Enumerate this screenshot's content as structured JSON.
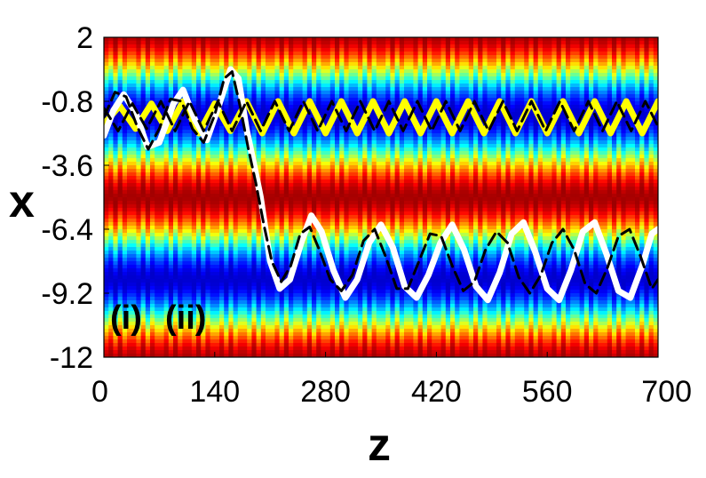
{
  "chart_data": {
    "type": "heatmap",
    "title": "",
    "xlabel": "z",
    "ylabel": "x",
    "xlim": [
      0,
      700
    ],
    "ylim": [
      -12,
      2
    ],
    "xticks": [
      "0",
      "140",
      "280",
      "420",
      "560",
      "700"
    ],
    "xtick_values": [
      0,
      140,
      280,
      420,
      560,
      700
    ],
    "yticks": [
      "2",
      "-0.8",
      "-3.6",
      "-6.4",
      "-9.2",
      "-12"
    ],
    "ytick_values": [
      2,
      -0.8,
      -3.6,
      -6.4,
      -9.2,
      -12
    ],
    "colormap": "jet",
    "background_field": {
      "description_of_pattern": "periodic lattice in x, modulated in z",
      "x_period": 7.2,
      "x_phase_center_low": -1.4,
      "z_period": 14,
      "band_low_values_centers": [
        -1.4,
        -7.7
      ],
      "band_high_values_centers": [
        -4.4,
        -10.8,
        1.5
      ]
    },
    "series": [
      {
        "label_key": "i",
        "color": "#ffff00",
        "style": "solid",
        "points": [
          [
            0,
            -1.8
          ],
          [
            20,
            -1.0
          ],
          [
            40,
            -2.0
          ],
          [
            60,
            -0.9
          ],
          [
            80,
            -2.1
          ],
          [
            100,
            -0.8
          ],
          [
            120,
            -2.2
          ],
          [
            140,
            -0.9
          ],
          [
            160,
            -2.1
          ],
          [
            180,
            -0.8
          ],
          [
            200,
            -2.2
          ],
          [
            220,
            -0.8
          ],
          [
            240,
            -2.2
          ],
          [
            260,
            -0.8
          ],
          [
            280,
            -2.2
          ],
          [
            300,
            -0.8
          ],
          [
            320,
            -2.2
          ],
          [
            340,
            -0.8
          ],
          [
            360,
            -2.2
          ],
          [
            380,
            -0.8
          ],
          [
            400,
            -2.2
          ],
          [
            420,
            -0.8
          ],
          [
            440,
            -2.2
          ],
          [
            460,
            -0.8
          ],
          [
            480,
            -2.2
          ],
          [
            500,
            -0.8
          ],
          [
            520,
            -2.2
          ],
          [
            540,
            -0.8
          ],
          [
            560,
            -2.2
          ],
          [
            580,
            -0.8
          ],
          [
            600,
            -2.2
          ],
          [
            620,
            -0.8
          ],
          [
            640,
            -2.2
          ],
          [
            660,
            -0.8
          ],
          [
            680,
            -2.2
          ],
          [
            700,
            -0.8
          ]
        ]
      },
      {
        "label_key": "ii",
        "color": "#ffffff",
        "style": "solid",
        "points": [
          [
            0,
            -2.3
          ],
          [
            12,
            -1.2
          ],
          [
            25,
            -0.5
          ],
          [
            40,
            -1.3
          ],
          [
            55,
            -2.8
          ],
          [
            70,
            -2.6
          ],
          [
            88,
            -0.9
          ],
          [
            100,
            -0.3
          ],
          [
            115,
            -1.6
          ],
          [
            130,
            -2.5
          ],
          [
            145,
            -1.0
          ],
          [
            160,
            0.6
          ],
          [
            170,
            0.2
          ],
          [
            180,
            -2.0
          ],
          [
            188,
            -3.3
          ],
          [
            198,
            -5.0
          ],
          [
            210,
            -7.8
          ],
          [
            222,
            -9.0
          ],
          [
            235,
            -8.6
          ],
          [
            250,
            -6.9
          ],
          [
            262,
            -5.8
          ],
          [
            275,
            -6.5
          ],
          [
            290,
            -8.2
          ],
          [
            305,
            -9.4
          ],
          [
            320,
            -8.6
          ],
          [
            335,
            -7.0
          ],
          [
            350,
            -6.2
          ],
          [
            365,
            -7.2
          ],
          [
            380,
            -8.9
          ],
          [
            395,
            -9.4
          ],
          [
            410,
            -8.4
          ],
          [
            425,
            -7.0
          ],
          [
            440,
            -6.2
          ],
          [
            455,
            -7.3
          ],
          [
            470,
            -8.9
          ],
          [
            485,
            -9.5
          ],
          [
            500,
            -8.3
          ],
          [
            515,
            -6.6
          ],
          [
            530,
            -6.1
          ],
          [
            545,
            -7.4
          ],
          [
            560,
            -9.0
          ],
          [
            575,
            -9.5
          ],
          [
            590,
            -8.2
          ],
          [
            605,
            -6.5
          ],
          [
            620,
            -6.1
          ],
          [
            635,
            -7.5
          ],
          [
            650,
            -9.1
          ],
          [
            665,
            -9.4
          ],
          [
            680,
            -8.0
          ],
          [
            692,
            -6.6
          ],
          [
            700,
            -6.4
          ]
        ]
      },
      {
        "label_key": "iii",
        "color": "#000000",
        "style": "dashed",
        "points": [
          [
            0,
            -1.5
          ],
          [
            14,
            -0.4
          ],
          [
            28,
            -0.6
          ],
          [
            42,
            -1.9
          ],
          [
            56,
            -2.9
          ],
          [
            70,
            -2.0
          ],
          [
            84,
            -0.7
          ],
          [
            98,
            -0.8
          ],
          [
            112,
            -2.0
          ],
          [
            126,
            -2.6
          ],
          [
            140,
            -1.4
          ],
          [
            152,
            0.2
          ],
          [
            162,
            0.5
          ],
          [
            172,
            -1.0
          ],
          [
            182,
            -2.8
          ],
          [
            192,
            -4.4
          ],
          [
            202,
            -6.2
          ],
          [
            212,
            -7.8
          ],
          [
            224,
            -8.7
          ],
          [
            236,
            -8.0
          ],
          [
            248,
            -6.6
          ],
          [
            260,
            -6.3
          ],
          [
            272,
            -7.3
          ],
          [
            286,
            -8.6
          ],
          [
            300,
            -9.1
          ],
          [
            314,
            -8.4
          ],
          [
            328,
            -6.9
          ],
          [
            342,
            -6.4
          ],
          [
            356,
            -7.6
          ],
          [
            370,
            -9.0
          ],
          [
            384,
            -9.0
          ],
          [
            398,
            -7.8
          ],
          [
            412,
            -6.6
          ],
          [
            426,
            -6.7
          ],
          [
            440,
            -8.0
          ],
          [
            454,
            -9.1
          ],
          [
            468,
            -8.7
          ],
          [
            482,
            -7.3
          ],
          [
            496,
            -6.5
          ],
          [
            510,
            -7.0
          ],
          [
            524,
            -8.5
          ],
          [
            538,
            -9.2
          ],
          [
            552,
            -8.4
          ],
          [
            566,
            -7.0
          ],
          [
            580,
            -6.4
          ],
          [
            594,
            -7.3
          ],
          [
            608,
            -8.8
          ],
          [
            622,
            -9.2
          ],
          [
            636,
            -8.1
          ],
          [
            650,
            -6.7
          ],
          [
            664,
            -6.4
          ],
          [
            678,
            -7.6
          ],
          [
            692,
            -9.0
          ],
          [
            700,
            -8.6
          ]
        ]
      },
      {
        "label_key": "iv",
        "color": "#000000",
        "style": "dashed",
        "points": [
          [
            0,
            -1.1
          ],
          [
            18,
            -2.1
          ],
          [
            36,
            -0.9
          ],
          [
            54,
            -2.0
          ],
          [
            72,
            -0.8
          ],
          [
            90,
            -2.1
          ],
          [
            108,
            -0.8
          ],
          [
            126,
            -2.1
          ],
          [
            144,
            -0.8
          ],
          [
            162,
            -2.1
          ],
          [
            180,
            -0.8
          ],
          [
            198,
            -2.1
          ],
          [
            216,
            -0.8
          ],
          [
            234,
            -2.1
          ],
          [
            252,
            -0.8
          ],
          [
            270,
            -2.1
          ],
          [
            288,
            -0.8
          ],
          [
            306,
            -2.1
          ],
          [
            324,
            -0.8
          ],
          [
            342,
            -2.1
          ],
          [
            360,
            -0.8
          ],
          [
            378,
            -2.1
          ],
          [
            396,
            -0.8
          ],
          [
            414,
            -2.1
          ],
          [
            432,
            -0.8
          ],
          [
            450,
            -2.1
          ],
          [
            468,
            -0.8
          ],
          [
            486,
            -2.1
          ],
          [
            504,
            -0.8
          ],
          [
            522,
            -2.1
          ],
          [
            540,
            -0.8
          ],
          [
            558,
            -2.1
          ],
          [
            576,
            -0.8
          ],
          [
            594,
            -2.1
          ],
          [
            612,
            -0.8
          ],
          [
            630,
            -2.1
          ],
          [
            648,
            -0.8
          ],
          [
            666,
            -2.1
          ],
          [
            684,
            -0.8
          ],
          [
            700,
            -1.9
          ]
        ]
      }
    ],
    "annotations": [
      {
        "text": "(i)",
        "color": "#f2d21b"
      },
      {
        "text": "(ii)",
        "color": "#ffffff"
      }
    ]
  }
}
